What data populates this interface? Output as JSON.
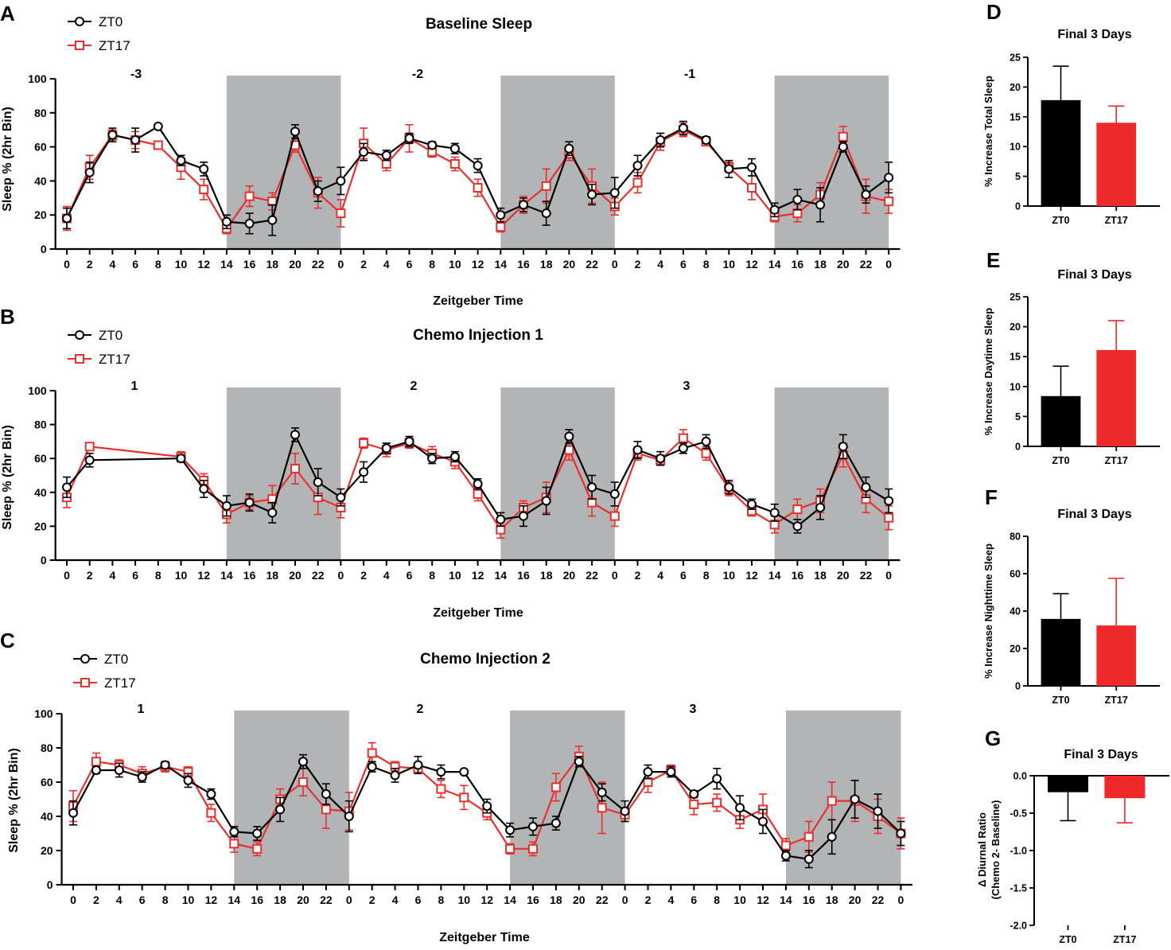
{
  "colors": {
    "zt0": "#000000",
    "zt17": "#e8302c",
    "bar_zt17": "#ee2a2a",
    "night": "#b3b4b6"
  },
  "x_ticks": [
    "0",
    "2",
    "4",
    "6",
    "8",
    "10",
    "12",
    "14",
    "16",
    "18",
    "20",
    "22",
    "0",
    "2",
    "4",
    "6",
    "8",
    "10",
    "12",
    "14",
    "16",
    "18",
    "20",
    "22",
    "0",
    "2",
    "4",
    "6",
    "8",
    "10",
    "12",
    "14",
    "16",
    "18",
    "20",
    "22",
    "0"
  ],
  "chart_data": [
    {
      "id": "A",
      "type": "line",
      "title": "Baseline Sleep",
      "xlabel": "Zeitgeber Time",
      "ylabel": "Sleep % (2hr Bin)",
      "ylim": [
        0,
        100
      ],
      "yticks": [
        "0",
        "20",
        "40",
        "60",
        "80",
        "100"
      ],
      "day_labels": [
        "-3",
        "-2",
        "-1"
      ],
      "night_bins": [
        [
          7,
          12
        ],
        [
          19,
          24
        ],
        [
          31,
          36
        ]
      ],
      "legend": [
        "ZT0",
        "ZT17"
      ],
      "series": [
        {
          "name": "ZT0",
          "values": [
            18,
            45,
            67,
            64,
            72,
            52,
            47,
            16,
            15,
            17,
            69,
            34,
            40,
            57,
            55,
            65,
            61,
            59,
            49,
            20,
            26,
            21,
            59,
            32,
            33,
            49,
            64,
            71,
            64,
            47,
            48,
            23,
            29,
            26,
            60,
            32,
            42
          ],
          "errors": [
            6,
            6,
            4,
            7,
            0,
            3,
            4,
            4,
            6,
            9,
            4,
            6,
            8,
            5,
            3,
            3,
            2,
            3,
            4,
            4,
            4,
            7,
            4,
            6,
            9,
            6,
            4,
            4,
            2,
            5,
            5,
            4,
            6,
            10,
            3,
            5,
            9
          ]
        },
        {
          "name": "ZT17",
          "values": [
            18,
            48,
            67,
            64,
            61,
            48,
            35,
            12,
            31,
            28,
            61,
            33,
            21,
            62,
            50,
            65,
            57,
            50,
            36,
            13,
            26,
            37,
            56,
            37,
            25,
            39,
            63,
            70,
            63,
            48,
            36,
            19,
            21,
            32,
            66,
            31,
            28
          ],
          "errors": [
            7,
            7,
            3,
            5,
            0,
            7,
            6,
            3,
            6,
            5,
            4,
            9,
            8,
            9,
            4,
            8,
            3,
            4,
            5,
            3,
            5,
            10,
            4,
            10,
            5,
            6,
            5,
            4,
            2,
            3,
            7,
            3,
            5,
            7,
            6,
            10,
            7
          ]
        }
      ]
    },
    {
      "id": "B",
      "type": "line",
      "title": "Chemo Injection 1",
      "xlabel": "Zeitgeber Time",
      "ylabel": "Sleep % (2hr Bin)",
      "ylim": [
        0,
        100
      ],
      "yticks": [
        "0",
        "20",
        "40",
        "60",
        "80",
        "100"
      ],
      "day_labels": [
        "1",
        "2",
        "3"
      ],
      "night_bins": [
        [
          7,
          12
        ],
        [
          19,
          24
        ],
        [
          31,
          36
        ]
      ],
      "legend": [
        "ZT0",
        "ZT17"
      ],
      "series": [
        {
          "name": "ZT0",
          "values": [
            43,
            59,
            null,
            null,
            null,
            60,
            42,
            32,
            34,
            28,
            74,
            46,
            37,
            52,
            66,
            70,
            60,
            61,
            45,
            24,
            26,
            35,
            73,
            43,
            39,
            65,
            60,
            66,
            70,
            43,
            33,
            28,
            20,
            31,
            67,
            43,
            35
          ],
          "errors": [
            6,
            4,
            null,
            null,
            null,
            2,
            5,
            6,
            5,
            6,
            4,
            8,
            5,
            6,
            3,
            3,
            3,
            3,
            3,
            4,
            6,
            8,
            4,
            7,
            7,
            5,
            4,
            3,
            4,
            4,
            3,
            5,
            4,
            7,
            7,
            6,
            7
          ]
        },
        {
          "name": "ZT17",
          "values": [
            37,
            67,
            null,
            null,
            null,
            61,
            47,
            27,
            34,
            36,
            54,
            37,
            31,
            69,
            65,
            69,
            63,
            58,
            39,
            18,
            31,
            37,
            65,
            34,
            26,
            63,
            59,
            72,
            63,
            42,
            29,
            21,
            30,
            35,
            62,
            36,
            25
          ],
          "errors": [
            6,
            0,
            null,
            null,
            null,
            3,
            4,
            5,
            4,
            8,
            9,
            10,
            6,
            3,
            4,
            3,
            4,
            4,
            4,
            5,
            4,
            9,
            6,
            8,
            6,
            4,
            3,
            5,
            4,
            4,
            3,
            5,
            6,
            7,
            7,
            8,
            7
          ]
        }
      ]
    },
    {
      "id": "C",
      "type": "line",
      "title": "Chemo Injection 2",
      "xlabel": "Zeitgeber Time",
      "ylabel": "Sleep % (2hr Bin)",
      "ylim": [
        0,
        100
      ],
      "yticks": [
        "0",
        "20",
        "40",
        "60",
        "80",
        "100"
      ],
      "day_labels": [
        "1",
        "2",
        "3"
      ],
      "night_bins": [
        [
          7,
          12
        ],
        [
          19,
          24
        ],
        [
          31,
          36
        ]
      ],
      "legend": [
        "ZT0",
        "ZT17"
      ],
      "series": [
        {
          "name": "ZT0",
          "values": [
            42,
            67,
            67,
            63,
            70,
            61,
            53,
            31,
            30,
            44,
            72,
            53,
            40,
            69,
            64,
            70,
            66,
            66,
            46,
            32,
            34,
            36,
            72,
            54,
            43,
            66,
            66,
            53,
            62,
            45,
            37,
            17,
            15,
            28,
            50,
            43,
            30
          ],
          "errors": [
            7,
            2,
            4,
            3,
            2,
            4,
            3,
            3,
            4,
            7,
            4,
            6,
            9,
            3,
            4,
            5,
            4,
            0,
            4,
            4,
            5,
            4,
            3,
            5,
            6,
            4,
            3,
            2,
            6,
            7,
            7,
            3,
            5,
            10,
            11,
            10,
            7
          ]
        },
        {
          "name": "ZT17",
          "values": [
            46,
            72,
            70,
            65,
            69,
            66,
            42,
            24,
            21,
            50,
            60,
            44,
            43,
            77,
            69,
            68,
            56,
            51,
            42,
            21,
            21,
            57,
            75,
            45,
            41,
            60,
            67,
            47,
            48,
            38,
            44,
            23,
            28,
            49,
            49,
            40,
            30
          ],
          "errors": [
            9,
            5,
            3,
            4,
            3,
            3,
            5,
            5,
            4,
            6,
            8,
            11,
            11,
            6,
            3,
            3,
            5,
            7,
            4,
            3,
            4,
            8,
            6,
            15,
            4,
            6,
            3,
            6,
            5,
            5,
            9,
            4,
            9,
            11,
            12,
            10,
            9
          ]
        }
      ]
    },
    {
      "id": "D",
      "type": "bar",
      "title": "Final 3 Days",
      "ylabel": "% Increase Total Sleep",
      "categories": [
        "ZT0",
        "ZT17"
      ],
      "values": [
        17.8,
        14.0
      ],
      "errors": [
        5.7,
        2.8
      ],
      "ylim": [
        0,
        25
      ],
      "yticks": [
        "0",
        "5",
        "10",
        "15",
        "20",
        "25"
      ]
    },
    {
      "id": "E",
      "type": "bar",
      "title": "Final 3 Days",
      "ylabel": "% Increase Daytime Sleep",
      "categories": [
        "ZT0",
        "ZT17"
      ],
      "values": [
        8.4,
        16.1
      ],
      "errors": [
        5.0,
        4.9
      ],
      "ylim": [
        0,
        25
      ],
      "yticks": [
        "0",
        "5",
        "10",
        "15",
        "20",
        "25"
      ]
    },
    {
      "id": "F",
      "type": "bar",
      "title": "Final 3 Days",
      "ylabel": "% Increase Nighttime Sleep",
      "categories": [
        "ZT0",
        "ZT17"
      ],
      "values": [
        35.8,
        32.3
      ],
      "errors": [
        13.5,
        25.2
      ],
      "ylim": [
        0,
        80
      ],
      "yticks": [
        "0",
        "20",
        "40",
        "60",
        "80"
      ]
    },
    {
      "id": "G",
      "type": "bar",
      "title": "Final 3 Days",
      "ylabel": "Δ Diurnal Ratio",
      "ylabel2": "(Chemo 2- Baseline)",
      "categories": [
        "ZT0",
        "ZT17"
      ],
      "values": [
        -0.22,
        -0.3
      ],
      "errors": [
        0.38,
        0.33
      ],
      "ylim": [
        -2.0,
        0.0
      ],
      "yticks": [
        "0.0",
        "-0.5",
        "-1.0",
        "-1.5",
        "-2.0"
      ]
    }
  ]
}
